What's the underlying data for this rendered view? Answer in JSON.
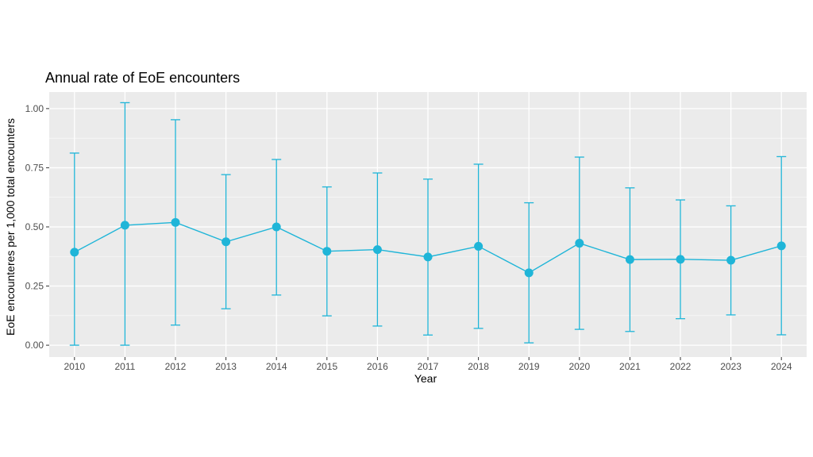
{
  "chart_data": {
    "type": "line",
    "title": "Annual rate of EoE encounters",
    "xlabel": "Year",
    "ylabel": "EoE encounteres per 1,000 total encounters",
    "x": [
      "2010",
      "2011",
      "2012",
      "2013",
      "2014",
      "2015",
      "2016",
      "2017",
      "2018",
      "2019",
      "2020",
      "2021",
      "2022",
      "2023",
      "2024"
    ],
    "series": [
      {
        "values": [
          0.393,
          0.507,
          0.519,
          0.437,
          0.5,
          0.397,
          0.404,
          0.373,
          0.418,
          0.306,
          0.431,
          0.362,
          0.363,
          0.359,
          0.42
        ],
        "lower": [
          0.0,
          0.0,
          0.085,
          0.154,
          0.212,
          0.124,
          0.081,
          0.043,
          0.071,
          0.01,
          0.067,
          0.058,
          0.112,
          0.128,
          0.044
        ],
        "upper": [
          0.812,
          1.025,
          0.953,
          0.721,
          0.785,
          0.669,
          0.728,
          0.702,
          0.765,
          0.602,
          0.795,
          0.665,
          0.614,
          0.589,
          0.797
        ]
      }
    ],
    "y_ticks": [
      0.0,
      0.25,
      0.5,
      0.75,
      1.0
    ],
    "y_tick_labels": [
      "0.00",
      "0.25",
      "0.50",
      "0.75",
      "1.00"
    ],
    "ylim": [
      -0.05,
      1.07
    ],
    "grid": true,
    "legend": "none",
    "colors": {
      "series": "#1fb5d8",
      "panel": "#ebebeb",
      "grid": "#ffffff"
    }
  }
}
